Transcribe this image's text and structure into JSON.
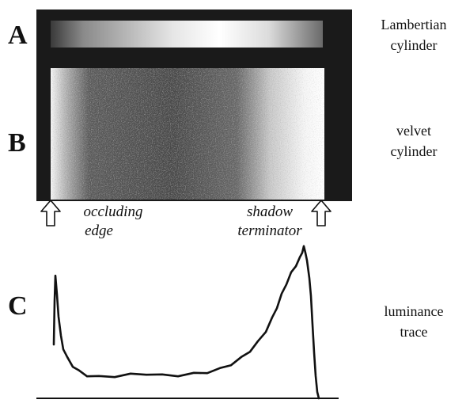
{
  "panels": {
    "a": {
      "letter": "A",
      "caption_line1": "Lambertian",
      "caption_line2": "cylinder"
    },
    "b": {
      "letter": "B",
      "caption_line1": "velvet",
      "caption_line2": "cylinder"
    },
    "c": {
      "letter": "C",
      "caption_line1": "luminance",
      "caption_line2": "trace"
    }
  },
  "annotations": {
    "left_line1": "occluding",
    "left_line2": "edge",
    "right_line1": "shadow",
    "right_line2": "terminator"
  },
  "colors": {
    "background": "#ffffff",
    "frame": "#1a1a1a",
    "trace": "#111111"
  },
  "icons": {
    "left_marker": "up-arrow-icon",
    "right_marker": "up-arrow-icon"
  }
}
